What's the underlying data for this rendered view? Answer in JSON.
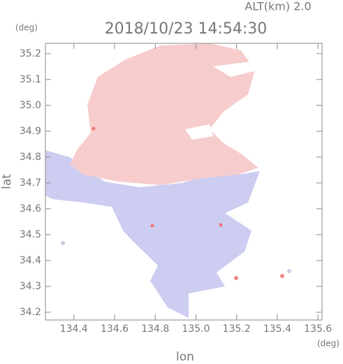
{
  "chart_data": {
    "type": "image",
    "title": "2018/10/23 14:54:30",
    "subtitle": "ALT(km)  2.0",
    "y_unit": "(deg)",
    "x_unit": "(deg)",
    "xlabel": "lon",
    "ylabel": "lat",
    "xlim": [
      134.26,
      135.62
    ],
    "ylim": [
      34.17,
      35.24
    ],
    "xticks": [
      134.4,
      134.6,
      134.8,
      {
        "value": 135,
        "label": "135.0"
      },
      135.2,
      135.4,
      135.6
    ],
    "yticks": [
      34.2,
      34.3,
      34.4,
      34.5,
      34.6,
      34.7,
      34.8,
      34.9,
      {
        "value": 35,
        "label": "35.0"
      },
      35.1,
      35.2
    ],
    "color": "#888888"
  }
}
